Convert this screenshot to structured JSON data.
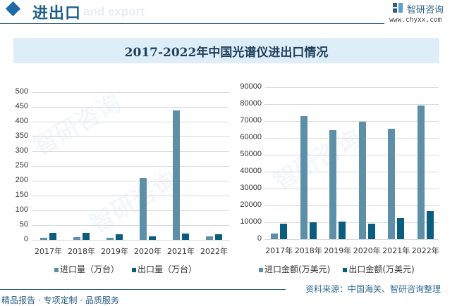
{
  "header": {
    "section_title": "进出口",
    "section_subtitle": "and export",
    "logo_name": "智研咨询",
    "logo_url": "www.chyxx.com"
  },
  "title": "2017-2022年中国光谱仪进出口情况",
  "colors": {
    "import": "#5e8fa8",
    "export": "#0b5d80",
    "accent": "#1f69a8",
    "title_band": "#ddeef8"
  },
  "chart_data": [
    {
      "type": "bar",
      "title": "",
      "categories": [
        "2017年",
        "2018年",
        "2019年",
        "2020年",
        "2021年",
        "2022年"
      ],
      "series": [
        {
          "name": "进口量（万台）",
          "values": [
            7,
            9,
            7,
            210,
            437,
            12
          ]
        },
        {
          "name": "出口量（万台）",
          "values": [
            23,
            24,
            19,
            13,
            21,
            19
          ]
        }
      ],
      "yticks": [
        0,
        50,
        100,
        150,
        200,
        250,
        300,
        350,
        400,
        450,
        500
      ],
      "ylim": [
        0,
        500
      ],
      "xlabel": "",
      "ylabel": "",
      "grid": true,
      "legend_position": "bottom"
    },
    {
      "type": "bar",
      "title": "",
      "categories": [
        "2017年",
        "2018年",
        "2019年",
        "2020年",
        "2021年",
        "2022年"
      ],
      "series": [
        {
          "name": "进口金额(万美元)",
          "values": [
            3400,
            73000,
            64700,
            69700,
            65500,
            79300
          ]
        },
        {
          "name": "出口金额(万美元)",
          "values": [
            9300,
            10100,
            10500,
            9300,
            12600,
            16800
          ]
        }
      ],
      "yticks": [
        0,
        10000,
        20000,
        30000,
        40000,
        50000,
        60000,
        70000,
        80000,
        90000
      ],
      "ylim": [
        0,
        90000
      ],
      "xlabel": "",
      "ylabel": "",
      "grid": true,
      "legend_position": "bottom"
    }
  ],
  "footer": {
    "source": "资料来源：中国海关、智研咨询整理",
    "slogan": "精品报告 · 专项定制 · 品质服务"
  }
}
